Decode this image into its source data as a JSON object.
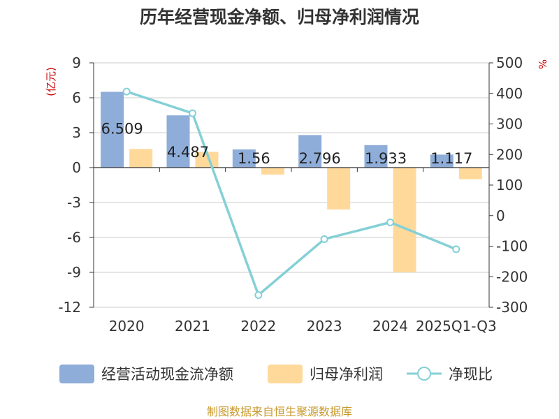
{
  "chart_data": {
    "type": "bar",
    "title": "历年经营现金净额、归母净利润情况",
    "categories": [
      "2020",
      "2021",
      "2022",
      "2023",
      "2024",
      "2025Q1-Q3"
    ],
    "series": [
      {
        "name": "经营活动现金流净额",
        "type": "bar",
        "axis": "left",
        "color": "#8eadd9",
        "values": [
          6.509,
          4.487,
          1.56,
          2.796,
          1.933,
          1.117
        ],
        "labels": [
          "6.509",
          "4.487",
          "1.56",
          "2.796",
          "1.933",
          "1.117"
        ]
      },
      {
        "name": "归母净利润",
        "type": "bar",
        "axis": "left",
        "color": "#ffd99a",
        "values": [
          1.6,
          1.35,
          -0.6,
          -3.6,
          -9.0,
          -1.0
        ]
      },
      {
        "name": "净现比",
        "type": "line",
        "axis": "right",
        "color": "#84d0d6",
        "values": [
          406,
          335,
          -260,
          -77,
          -22,
          -110
        ]
      }
    ],
    "y_left": {
      "unit": "(亿元)",
      "min": -12,
      "max": 9,
      "ticks": [
        "9",
        "6",
        "3",
        "0",
        "-3",
        "-6",
        "-9",
        "-12"
      ]
    },
    "y_right": {
      "unit": "%",
      "min": -300,
      "max": 500,
      "ticks": [
        "500",
        "400",
        "300",
        "200",
        "100",
        "0",
        "-100",
        "-200",
        "-300"
      ]
    },
    "grid": true,
    "legend": "bottom"
  },
  "colors": {
    "title": "#333333",
    "axis_text": "#333333",
    "unit_text": "#cc0000",
    "grid": "#cccccc",
    "source_text": "#c99a2e"
  },
  "source": "制图数据来自恒生聚源数据库"
}
